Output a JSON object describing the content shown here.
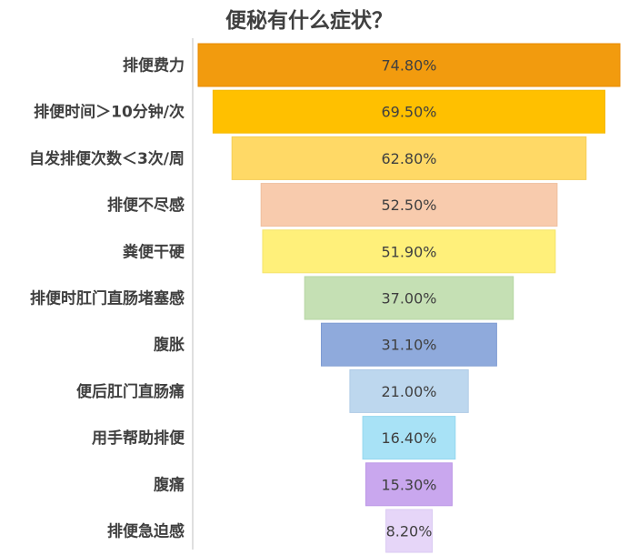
{
  "chart_data": {
    "type": "bar",
    "subtype": "funnel",
    "title": "便秘有什么症状？",
    "xlabel": "",
    "ylabel": "",
    "unit": "%",
    "grid": false,
    "legend": "none",
    "categories": [
      "排便费力",
      "排便时间＞10分钟/次",
      "自发排便次数＜3次/周",
      "排便不尽感",
      "粪便干硬",
      "排便时肛门直肠堵塞感",
      "腹胀",
      "便后肛门直肠痛",
      "用手帮助排便",
      "腹痛",
      "排便急迫感"
    ],
    "values": [
      74.8,
      69.5,
      62.8,
      52.5,
      51.9,
      37.0,
      31.1,
      21.0,
      16.4,
      15.3,
      8.2
    ],
    "value_labels": [
      "74.80%",
      "69.50%",
      "62.80%",
      "52.50%",
      "51.90%",
      "37.00%",
      "31.10%",
      "21.00%",
      "16.40%",
      "15.30%",
      "8.20%"
    ],
    "colors": [
      "#F29B0E",
      "#FFC000",
      "#FFD966",
      "#F8CBAD",
      "#FFF07A",
      "#C5E0B4",
      "#8FAADC",
      "#BDD7EE",
      "#A8E2F6",
      "#C9A7EE",
      "#E6D6F8"
    ],
    "border_colors": [
      "#E88A00",
      "#F5B800",
      "#F5CE57",
      "#EFBF9E",
      "#F4E36A",
      "#B6D6A3",
      "#7F9CD3",
      "#AFCBE6",
      "#95D8EF",
      "#BC97E6",
      "#DACAF2"
    ]
  }
}
